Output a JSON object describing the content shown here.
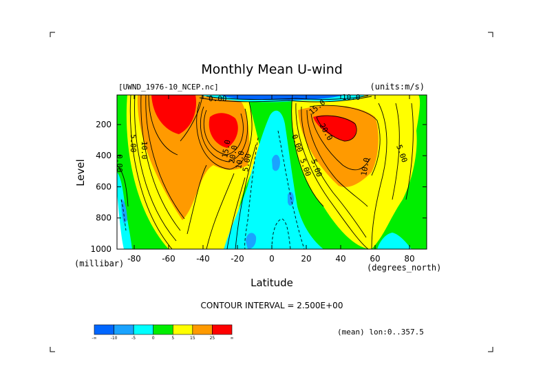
{
  "chart_data": {
    "type": "heatmap",
    "title": "Monthly Mean U-wind",
    "file_label": "[UWND_1976-10_NCEP.nc]",
    "units_label": "(units:m/s)",
    "xlabel": "Latitude",
    "ylabel": "Level",
    "x_unit": "(degrees_north)",
    "y_unit": "(millibar)",
    "xlim": [
      -90,
      90
    ],
    "ylim": [
      1000,
      10
    ],
    "y_reversed": true,
    "x_ticks": [
      -80,
      -60,
      -40,
      -20,
      0,
      20,
      40,
      60,
      80
    ],
    "y_ticks": [
      200,
      400,
      600,
      800,
      1000
    ],
    "contour_interval_text": "CONTOUR INTERVAL = 2.500E+00",
    "mean_note": "(mean) lon:0..357.5",
    "contour_labels": [
      "5.00",
      "10.0",
      "15.0",
      "20.0",
      "10.0",
      "5.00",
      "5.00",
      "10.0",
      "15.0",
      "20.0",
      "10.0",
      "5.00",
      "0.00",
      "0.00",
      "0.00",
      "5.00"
    ],
    "colorbar": {
      "tick_labels": [
        "-∞",
        "-10",
        "-5",
        "0",
        "5",
        "15",
        "25",
        "∞"
      ],
      "colors": [
        "#0066ff",
        "#1aa3ff",
        "#00ffff",
        "#00ee00",
        "#ffff00",
        "#ff9a00",
        "#ff0000"
      ]
    },
    "regions": [
      {
        "name": "sh-jet-strong",
        "level": "25+",
        "color": "#ff0000",
        "lat_range": [
          -75,
          -48
        ],
        "p_range": [
          10,
          230
        ]
      },
      {
        "name": "sh-subtropical-jet-core",
        "level": "25+",
        "color": "#ff0000",
        "lat_range": [
          -34,
          -20
        ],
        "p_range": [
          150,
          300
        ]
      },
      {
        "name": "nh-jet-core",
        "level": "25+",
        "color": "#ff0000",
        "lat_range": [
          33,
          53
        ],
        "p_range": [
          140,
          300
        ]
      },
      {
        "name": "tropical-easterlies",
        "level": "-5..0",
        "color": "#00ffff",
        "lat_range": [
          -30,
          25
        ],
        "p_range": [
          130,
          1000
        ]
      },
      {
        "name": "deep-easterly-spots",
        "level": "<-5",
        "color": "#1aa3ff",
        "lat_range": [
          -15,
          12
        ],
        "p_range": [
          350,
          1000
        ]
      },
      {
        "name": "sh-polar-easterlies",
        "level": "-5..0",
        "color": "#00ffff",
        "lat_range": [
          -90,
          -82
        ],
        "p_range": [
          400,
          1000
        ]
      },
      {
        "name": "nh-low-level-easterlies",
        "level": "-5..0",
        "color": "#00ffff",
        "lat_range": [
          64,
          80
        ],
        "p_range": [
          880,
          1000
        ]
      },
      {
        "name": "stratospheric-easterlies",
        "level": "<-10",
        "color": "#0066ff",
        "lat_range": [
          -20,
          30
        ],
        "p_range": [
          10,
          50
        ]
      }
    ]
  }
}
